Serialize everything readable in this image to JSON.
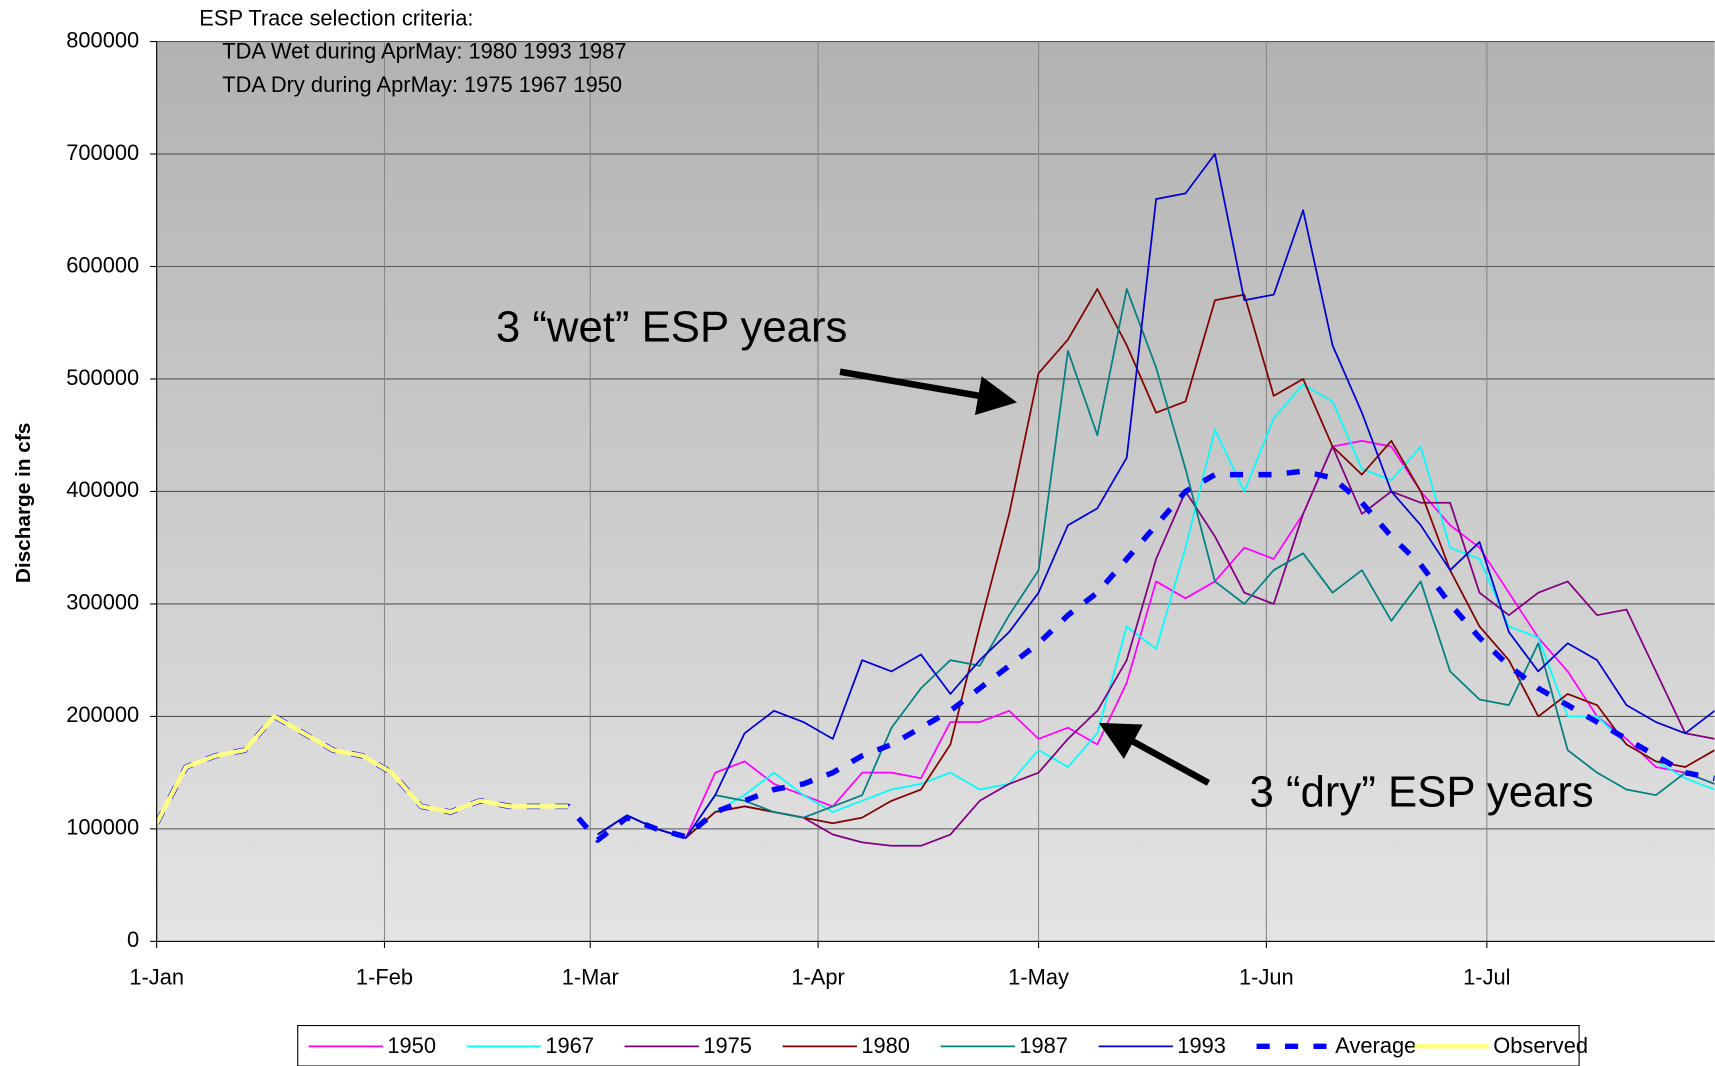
{
  "chart_data": {
    "type": "line",
    "notes": [
      "ESP Trace selection criteria:",
      "TDA Wet during AprMay:  1980 1993 1987",
      "TDA Dry during AprMay:  1975 1967 1950"
    ],
    "annotations": [
      "3 “wet” ESP years",
      "3 “dry” ESP years"
    ],
    "y_label": "Discharge in cfs",
    "xlim": [
      0,
      212
    ],
    "xticks": [
      {
        "value": 0,
        "label": "1-Jan"
      },
      {
        "value": 31,
        "label": "1-Feb"
      },
      {
        "value": 59,
        "label": "1-Mar"
      },
      {
        "value": 90,
        "label": "1-Apr"
      },
      {
        "value": 120,
        "label": "1-May"
      },
      {
        "value": 151,
        "label": "1-Jun"
      },
      {
        "value": 181,
        "label": "1-Jul"
      }
    ],
    "ylim": [
      0,
      800000
    ],
    "yticks": [
      0,
      100000,
      200000,
      300000,
      400000,
      500000,
      600000,
      700000,
      800000
    ],
    "grid": true,
    "x": [
      0,
      4,
      8,
      12,
      16,
      20,
      24,
      28,
      32,
      36,
      40,
      44,
      48,
      52,
      56,
      60,
      64,
      68,
      72,
      76,
      80,
      84,
      88,
      92,
      96,
      100,
      104,
      108,
      112,
      116,
      120,
      124,
      128,
      132,
      136,
      140,
      144,
      148,
      152,
      156,
      160,
      164,
      168,
      172,
      176,
      180,
      184,
      188,
      192,
      196,
      200,
      204,
      208,
      212
    ],
    "series": [
      {
        "name": "1950",
        "color": "#ff00ff",
        "values": [
          null,
          null,
          null,
          null,
          null,
          null,
          null,
          null,
          null,
          null,
          null,
          null,
          null,
          null,
          null,
          95000,
          112000,
          100000,
          92000,
          150000,
          160000,
          140000,
          130000,
          120000,
          150000,
          150000,
          145000,
          195000,
          195000,
          205000,
          180000,
          190000,
          175000,
          230000,
          320000,
          305000,
          320000,
          350000,
          340000,
          380000,
          440000,
          445000,
          440000,
          400000,
          370000,
          350000,
          310000,
          270000,
          240000,
          200000,
          180000,
          155000,
          150000,
          140000
        ]
      },
      {
        "name": "1967",
        "color": "#00ffff",
        "values": [
          null,
          null,
          null,
          null,
          null,
          null,
          null,
          null,
          null,
          null,
          null,
          null,
          null,
          null,
          null,
          95000,
          112000,
          100000,
          92000,
          115000,
          130000,
          150000,
          130000,
          115000,
          125000,
          135000,
          140000,
          150000,
          135000,
          140000,
          170000,
          155000,
          185000,
          280000,
          260000,
          350000,
          455000,
          400000,
          465000,
          495000,
          480000,
          420000,
          410000,
          440000,
          350000,
          340000,
          280000,
          270000,
          200000,
          200000,
          175000,
          160000,
          145000,
          135000
        ]
      },
      {
        "name": "1975",
        "color": "#800080",
        "values": [
          null,
          null,
          null,
          null,
          null,
          null,
          null,
          null,
          null,
          null,
          null,
          null,
          null,
          null,
          null,
          95000,
          112000,
          100000,
          92000,
          115000,
          120000,
          115000,
          110000,
          95000,
          88000,
          85000,
          85000,
          95000,
          125000,
          140000,
          150000,
          180000,
          205000,
          250000,
          340000,
          400000,
          360000,
          310000,
          300000,
          380000,
          440000,
          380000,
          400000,
          390000,
          390000,
          310000,
          290000,
          310000,
          320000,
          290000,
          295000,
          240000,
          185000,
          180000
        ]
      },
      {
        "name": "1980",
        "color": "#800000",
        "values": [
          null,
          null,
          null,
          null,
          null,
          null,
          null,
          null,
          null,
          null,
          null,
          null,
          null,
          null,
          null,
          95000,
          112000,
          100000,
          92000,
          115000,
          120000,
          115000,
          110000,
          105000,
          110000,
          125000,
          135000,
          175000,
          280000,
          380000,
          505000,
          535000,
          580000,
          530000,
          470000,
          480000,
          570000,
          575000,
          485000,
          500000,
          440000,
          415000,
          445000,
          400000,
          330000,
          280000,
          250000,
          200000,
          220000,
          210000,
          175000,
          160000,
          155000,
          170000
        ]
      },
      {
        "name": "1987",
        "color": "#008080",
        "values": [
          null,
          null,
          null,
          null,
          null,
          null,
          null,
          null,
          null,
          null,
          null,
          null,
          null,
          null,
          null,
          95000,
          112000,
          100000,
          92000,
          130000,
          125000,
          115000,
          110000,
          120000,
          130000,
          190000,
          225000,
          250000,
          245000,
          290000,
          330000,
          525000,
          450000,
          580000,
          510000,
          420000,
          320000,
          300000,
          330000,
          345000,
          310000,
          330000,
          285000,
          320000,
          240000,
          215000,
          210000,
          265000,
          170000,
          150000,
          135000,
          130000,
          150000,
          140000
        ]
      },
      {
        "name": "1993",
        "color": "#0000cc",
        "values": [
          null,
          null,
          null,
          null,
          null,
          null,
          null,
          null,
          null,
          null,
          null,
          null,
          null,
          null,
          null,
          95000,
          112000,
          100000,
          92000,
          130000,
          185000,
          205000,
          195000,
          180000,
          250000,
          240000,
          255000,
          220000,
          250000,
          275000,
          310000,
          370000,
          385000,
          430000,
          660000,
          665000,
          700000,
          570000,
          575000,
          650000,
          530000,
          470000,
          400000,
          370000,
          330000,
          355000,
          275000,
          240000,
          265000,
          250000,
          210000,
          195000,
          185000,
          205000
        ]
      },
      {
        "name": "Average",
        "color": "#0000ff",
        "dashed": true,
        "values": [
          105000,
          155000,
          165000,
          170000,
          200000,
          185000,
          170000,
          165000,
          150000,
          120000,
          115000,
          125000,
          120000,
          120000,
          120000,
          90000,
          110000,
          100000,
          93000,
          115000,
          125000,
          135000,
          140000,
          150000,
          165000,
          175000,
          190000,
          205000,
          225000,
          245000,
          265000,
          290000,
          310000,
          340000,
          370000,
          400000,
          415000,
          415000,
          415000,
          418000,
          412000,
          390000,
          360000,
          335000,
          300000,
          270000,
          245000,
          225000,
          210000,
          195000,
          180000,
          165000,
          150000,
          145000
        ]
      },
      {
        "name": "Observed",
        "color": "#ffff80",
        "values": [
          105000,
          155000,
          165000,
          170000,
          200000,
          185000,
          170000,
          165000,
          150000,
          120000,
          115000,
          125000,
          120000,
          120000,
          120000,
          null,
          null,
          null,
          null,
          null,
          null,
          null,
          null,
          null,
          null,
          null,
          null,
          null,
          null,
          null,
          null,
          null,
          null,
          null,
          null,
          null,
          null,
          null,
          null,
          null,
          null,
          null,
          null,
          null,
          null,
          null,
          null,
          null,
          null,
          null,
          null,
          null,
          null,
          null
        ]
      }
    ]
  }
}
